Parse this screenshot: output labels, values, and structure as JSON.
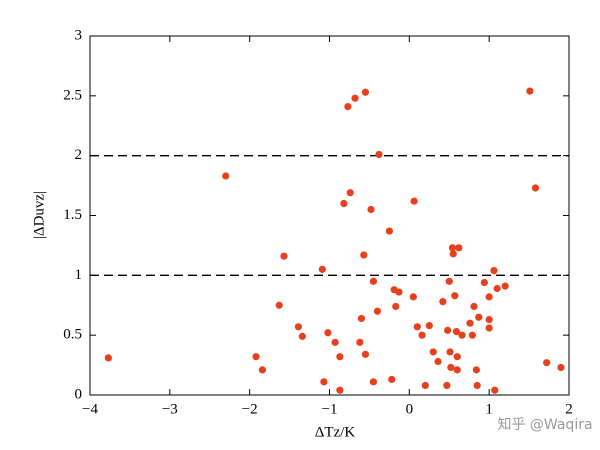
{
  "chart_data": {
    "type": "scatter",
    "x_label": "ΔTz/K",
    "y_label": "|ΔDuvz|",
    "watermark": "知乎 @Waqira",
    "color": "#e8401c",
    "xlim": [
      -4,
      2
    ],
    "ylim": [
      0,
      3
    ],
    "xticks": [
      {
        "value": -4,
        "label": "−4"
      },
      {
        "value": -3,
        "label": "−3"
      },
      {
        "value": -2,
        "label": "−2"
      },
      {
        "value": -1,
        "label": "−1"
      },
      0,
      1,
      2
    ],
    "yticks": [
      0,
      0.5,
      1,
      1.5,
      2,
      2.5,
      3
    ],
    "reference_lines": [
      1,
      2
    ],
    "x": [
      -3.77,
      -2.3,
      -1.92,
      -1.84,
      -1.63,
      -1.57,
      -1.39,
      -1.34,
      -1.09,
      -1.07,
      -1.02,
      -0.93,
      -0.87,
      -0.87,
      -0.82,
      -0.77,
      -0.74,
      -0.68,
      -0.55,
      -0.62,
      -0.6,
      -0.57,
      -0.55,
      -0.48,
      -0.45,
      -0.45,
      -0.4,
      -0.38,
      -0.25,
      -0.22,
      -0.19,
      -0.13,
      -0.17,
      0.05,
      0.06,
      0.1,
      0.16,
      0.2,
      0.25,
      0.3,
      0.36,
      0.42,
      0.47,
      0.48,
      0.5,
      0.51,
      0.52,
      0.54,
      0.55,
      0.57,
      0.59,
      0.6,
      0.6,
      0.62,
      0.66,
      0.76,
      0.79,
      0.81,
      0.84,
      0.85,
      0.87,
      0.94,
      1.0,
      1.0,
      1.0,
      1.06,
      1.07,
      1.1,
      1.2,
      1.51,
      1.58,
      1.72,
      1.9
    ],
    "values": [
      0.31,
      1.83,
      0.32,
      0.21,
      0.75,
      1.16,
      0.57,
      0.49,
      1.05,
      0.11,
      0.52,
      0.44,
      0.04,
      0.32,
      1.6,
      2.41,
      1.69,
      2.48,
      2.53,
      0.44,
      0.64,
      1.17,
      0.34,
      1.55,
      0.95,
      0.11,
      0.7,
      2.01,
      1.37,
      0.13,
      0.88,
      0.86,
      0.74,
      0.82,
      1.62,
      0.57,
      0.5,
      0.08,
      0.58,
      0.36,
      0.28,
      0.78,
      0.08,
      0.54,
      0.95,
      0.36,
      0.23,
      1.23,
      1.18,
      0.83,
      0.53,
      0.32,
      0.21,
      1.23,
      0.5,
      0.6,
      0.5,
      0.74,
      0.21,
      0.08,
      0.65,
      0.94,
      0.82,
      0.63,
      0.56,
      1.04,
      0.04,
      0.89,
      0.91,
      2.54,
      1.73,
      0.27,
      0.23
    ]
  }
}
